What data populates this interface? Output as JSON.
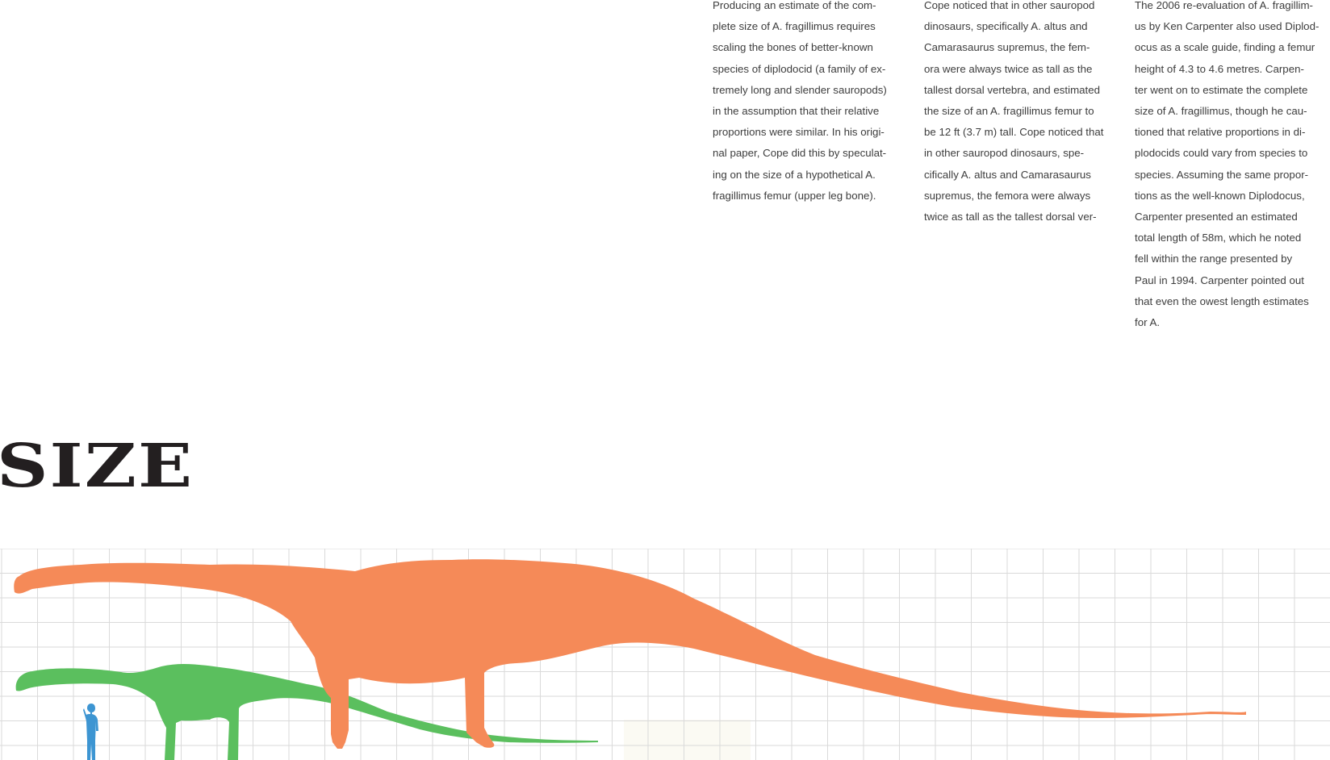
{
  "columns": [
    {
      "lines": [
        "Producing an estimate of the com-",
        "plete size of A. fragillimus requires",
        "scaling the bones of better-known",
        "species of diplodocid (a family of ex-",
        "tremely long and slender sauropods)",
        "in the assumption that their relative",
        "proportions were similar. In his origi-",
        "nal paper, Cope did this by speculat-",
        "ing on the size of a hypothetical A.",
        "fragillimus femur (upper leg bone)."
      ]
    },
    {
      "lines": [
        "Cope noticed that in other sauropod",
        "dinosaurs, specifically A. altus and",
        "Camarasaurus supremus, the fem-",
        "ora were always twice as tall as the",
        "tallest dorsal vertebra, and estimated",
        "the size of an A. fragillimus femur to",
        "be 12 ft (3.7 m) tall. Cope noticed that",
        "in other sauropod dinosaurs, spe-",
        "cifically A. altus and Camarasaurus",
        "supremus, the femora were always",
        "twice as tall as the tallest dorsal ver-"
      ]
    },
    {
      "lines": [
        "The 2006 re-evaluation of A. fragillim-",
        "us by Ken Carpenter also used Diplod-",
        "ocus as a scale guide, finding a femur",
        "height of 4.3 to 4.6 metres. Carpen-",
        "ter went on to estimate the complete",
        "size of A. fragillimus, though he cau-",
        "tioned that relative proportions in di-",
        "plodocids could vary from species to",
        "species. Assuming the same propor-",
        "tions as the well-known Diplodocus,",
        "Carpenter presented an estimated",
        "total length of 58m, which he noted",
        "fell within the range presented by",
        "Paul in 1994. Carpenter pointed out",
        "that even the owest length estimates",
        "for A."
      ]
    }
  ],
  "section_title": "SIZE",
  "colors": {
    "body_text": "#3d3d3d",
    "title": "#231f20",
    "grid_line": "#dadada",
    "large_sauropod": "#f58a58",
    "small_sauropod": "#5bbf5e",
    "human": "#3d95d2",
    "highlight_box": "#fbfaf3"
  },
  "silhouettes": [
    {
      "name": "large-sauropod-silhouette",
      "color_key": "large_sauropod"
    },
    {
      "name": "small-sauropod-silhouette",
      "color_key": "small_sauropod"
    },
    {
      "name": "human-silhouette",
      "color_key": "human"
    }
  ]
}
